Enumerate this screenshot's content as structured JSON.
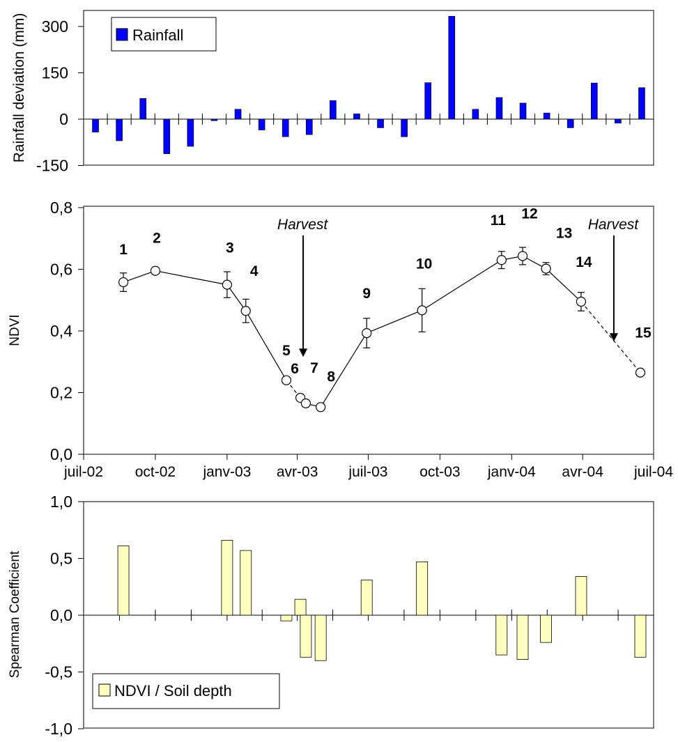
{
  "chart_data": [
    {
      "type": "bar",
      "ylabel": "Rainfall deviation (mm)",
      "ylim": [
        -150,
        300
      ],
      "yticks": [
        300,
        150,
        0,
        -150
      ],
      "legend": "top-left",
      "series": [
        {
          "name": "Rainfall",
          "color": "#0000FF",
          "values": [
            -42,
            -70,
            67,
            -112,
            -88,
            -5,
            32,
            -35,
            -57,
            -50,
            60,
            17,
            -28,
            -57,
            118,
            333,
            32,
            70,
            52,
            20,
            -28,
            117,
            -13,
            102
          ]
        }
      ]
    },
    {
      "type": "line",
      "ylabel": "NDVI",
      "ylim": [
        0.0,
        0.8
      ],
      "yticks": [
        "0,0",
        "0,2",
        "0,4",
        "0,6",
        "0,8"
      ],
      "xtick_labels": [
        "juil-02",
        "oct-02",
        "janv-03",
        "avr-03",
        "juil-03",
        "oct-03",
        "janv-04",
        "avr-04",
        "juil-04"
      ],
      "points": [
        {
          "label": "1",
          "x": "2002-08-21",
          "y": 0.558,
          "err": 0.03
        },
        {
          "label": "2",
          "x": "2002-10-01",
          "y": 0.595,
          "err": 0.01
        },
        {
          "label": "3",
          "x": "2003-01-01",
          "y": 0.55,
          "err": 0.042
        },
        {
          "label": "4",
          "x": "2003-01-25",
          "y": 0.465,
          "err": 0.038
        },
        {
          "label": "5",
          "x": "2003-03-18",
          "y": 0.24,
          "err": 0.01
        },
        {
          "label": "6",
          "x": "2003-04-05",
          "y": 0.183,
          "err": 0.005
        },
        {
          "label": "7",
          "x": "2003-04-12",
          "y": 0.165,
          "err": 0.005
        },
        {
          "label": "8",
          "x": "2003-05-01",
          "y": 0.153,
          "err": 0.005
        },
        {
          "label": "9",
          "x": "2003-06-29",
          "y": 0.393,
          "err": 0.048
        },
        {
          "label": "10",
          "x": "2003-09-08",
          "y": 0.467,
          "err": 0.07
        },
        {
          "label": "11",
          "x": "2003-12-19",
          "y": 0.63,
          "err": 0.028
        },
        {
          "label": "12",
          "x": "2004-01-15",
          "y": 0.643,
          "err": 0.028
        },
        {
          "label": "13",
          "x": "2004-02-14",
          "y": 0.602,
          "err": 0.02
        },
        {
          "label": "14",
          "x": "2004-03-30",
          "y": 0.495,
          "err": 0.03
        },
        {
          "label": "15",
          "x": "2004-06-14",
          "y": 0.265,
          "err": 0.008
        }
      ],
      "annotations": [
        {
          "text": "Harvest",
          "x": "2003-04-05",
          "y_top": 0.71,
          "y_bottom": 0.32
        },
        {
          "text": "Harvest",
          "x": "2004-05-11",
          "y_top": 0.71,
          "y_bottom": 0.37
        }
      ]
    },
    {
      "type": "bar",
      "ylabel": "Spearman Coefficient",
      "ylim": [
        -1.0,
        1.0
      ],
      "yticks": [
        "1,0",
        "0,5",
        "0,0",
        "-0,5",
        "-1,0"
      ],
      "legend": "bottom-left",
      "series": [
        {
          "name": "NDVI / Soil depth",
          "color": "#FFFFC0",
          "values": [
            0.61,
            0.66,
            0.57,
            -0.05,
            0.14,
            -0.37,
            -0.4,
            0.31,
            0.47,
            -0.35,
            -0.39,
            -0.24,
            0.34,
            -0.37
          ]
        }
      ]
    }
  ]
}
